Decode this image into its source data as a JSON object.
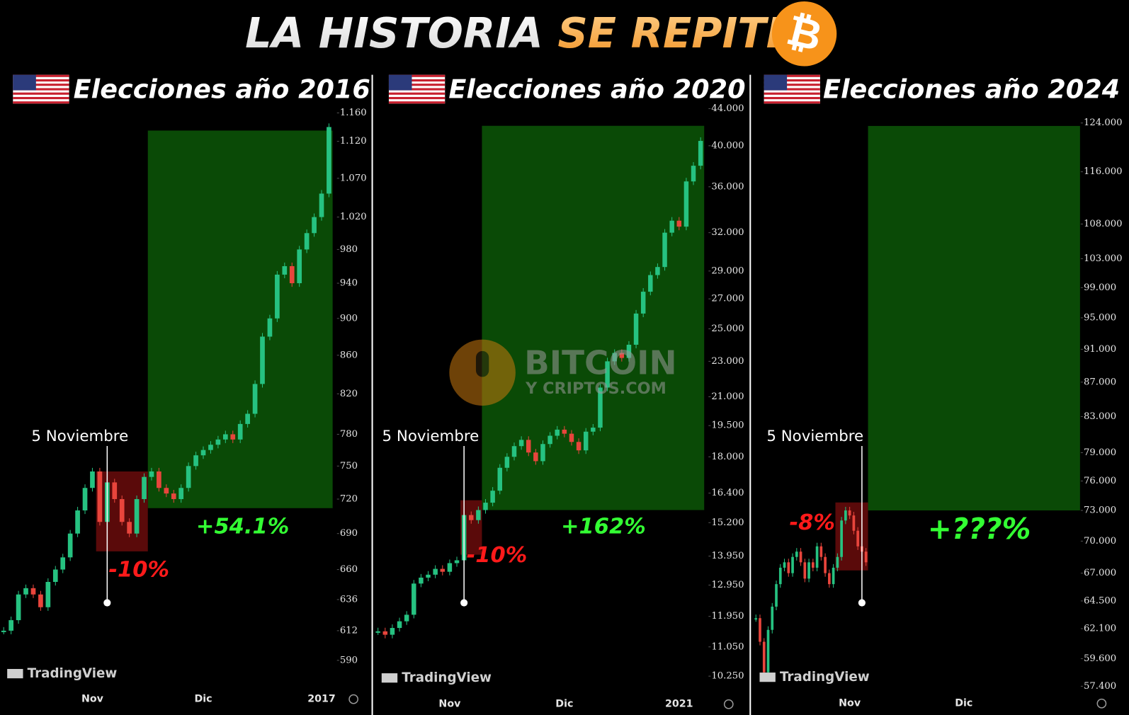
{
  "title": {
    "part1": "LA HISTORIA",
    "part2": "SE REPITE",
    "icon": "₿"
  },
  "watermark": {
    "line1": "BITCOIN",
    "line2": "Y CRIPTOS.COM"
  },
  "chart_data": [
    {
      "type": "candlestick",
      "title": "Elecciones año 2016",
      "event_label": "5 Noviembre",
      "drop_label": "-10%",
      "gain_label": "+54.1%",
      "logo": "TradingView",
      "up_color": "#26c281",
      "down_color": "#e8453c",
      "log_scale": true,
      "drop_zone": [
        675,
        745
      ],
      "gain_zone": [
        712,
        1135
      ],
      "categories": [
        null,
        null,
        null,
        null,
        null,
        null,
        null,
        null,
        null,
        null,
        null,
        null,
        "Nov",
        null,
        null,
        null,
        null,
        null,
        null,
        null,
        null,
        null,
        null,
        null,
        null,
        null,
        null,
        "Dic",
        null,
        null,
        null,
        null,
        null,
        null,
        null,
        null,
        null,
        null,
        null,
        null,
        null,
        null,
        null,
        "2017",
        null
      ],
      "values": [
        612,
        620,
        640,
        645,
        640,
        630,
        650,
        660,
        670,
        690,
        710,
        730,
        745,
        700,
        735,
        720,
        700,
        690,
        720,
        740,
        745,
        730,
        725,
        720,
        730,
        750,
        760,
        765,
        770,
        775,
        780,
        775,
        790,
        800,
        830,
        880,
        900,
        950,
        960,
        940,
        980,
        1000,
        1020,
        1050,
        1140
      ],
      "ylim": [
        590,
        1160
      ],
      "yticks": [
        590,
        612,
        636,
        660,
        690,
        720,
        750,
        780,
        820,
        860,
        900,
        940,
        980,
        {
          "value": 1020,
          "label": "1.020"
        },
        {
          "value": 1070,
          "label": "1.070"
        },
        {
          "value": 1120,
          "label": "1.120"
        },
        {
          "value": 1160,
          "label": "1.160"
        }
      ]
    },
    {
      "type": "candlestick",
      "title": "Elecciones año 2020",
      "event_label": "5 Noviembre",
      "drop_label": "-10%",
      "gain_label": "+162%",
      "logo": "TradingView",
      "up_color": "#26c281",
      "down_color": "#e8453c",
      "log_scale": true,
      "drop_zone": [
        14000,
        16100
      ],
      "gain_zone": [
        15700,
        42100
      ],
      "categories": [
        null,
        null,
        null,
        null,
        null,
        null,
        null,
        null,
        null,
        null,
        "Nov",
        null,
        null,
        null,
        null,
        null,
        null,
        null,
        null,
        null,
        null,
        null,
        null,
        null,
        null,
        null,
        "Dic",
        null,
        null,
        null,
        null,
        null,
        null,
        null,
        null,
        null,
        null,
        null,
        null,
        null,
        null,
        null,
        "2021",
        null,
        null,
        null
      ],
      "values": [
        11500,
        11400,
        11600,
        11800,
        12000,
        13000,
        13200,
        13300,
        13500,
        13400,
        13700,
        13800,
        15500,
        15300,
        15700,
        16000,
        16500,
        17500,
        18000,
        18500,
        18800,
        18200,
        17800,
        18600,
        19000,
        19300,
        19100,
        18700,
        18300,
        19200,
        19400,
        21500,
        23000,
        23500,
        23200,
        24000,
        26000,
        27500,
        28700,
        29300,
        32000,
        33000,
        32500,
        36500,
        38000,
        40500
      ],
      "ylim": [
        10250,
        44000
      ],
      "yticks": [
        {
          "value": 10250,
          "label": "10.250"
        },
        {
          "value": 11050,
          "label": "11.050"
        },
        {
          "value": 11950,
          "label": "11.950"
        },
        {
          "value": 12950,
          "label": "12.950"
        },
        {
          "value": 13950,
          "label": "13.950"
        },
        {
          "value": 15200,
          "label": "15.200"
        },
        {
          "value": 16400,
          "label": "16.400"
        },
        {
          "value": 18000,
          "label": "18.000"
        },
        {
          "value": 19500,
          "label": "19.500"
        },
        {
          "value": 21000,
          "label": "21.000"
        },
        {
          "value": 23000,
          "label": "23.000"
        },
        {
          "value": 25000,
          "label": "25.000"
        },
        {
          "value": 27000,
          "label": "27.000"
        },
        {
          "value": 29000,
          "label": "29.000"
        },
        {
          "value": 32000,
          "label": "32.000"
        },
        {
          "value": 36000,
          "label": "36.000"
        },
        {
          "value": 40000,
          "label": "40.000"
        },
        {
          "value": 44000,
          "label": "44.000"
        }
      ]
    },
    {
      "type": "candlestick",
      "title": "Elecciones año 2024",
      "event_label": "5 Noviembre",
      "drop_label": "-8%",
      "gain_label": "+???%",
      "logo": "TradingView",
      "up_color": "#26c281",
      "down_color": "#e8453c",
      "log_scale": true,
      "drop_zone": [
        67250,
        73800
      ],
      "gain_zone": [
        73000,
        123500
      ],
      "categories": [
        null,
        null,
        null,
        null,
        null,
        null,
        null,
        null,
        null,
        null,
        null,
        null,
        null,
        null,
        null,
        null,
        null,
        null,
        null,
        null,
        null,
        null,
        null,
        "Nov",
        null,
        null,
        null,
        null,
        null,
        null,
        null,
        null,
        null,
        null,
        null,
        null,
        null,
        null,
        null,
        null,
        null,
        null,
        null,
        null,
        null,
        null,
        null,
        null,
        null,
        null,
        null,
        "Dic",
        null,
        null,
        null,
        null,
        null,
        null,
        null,
        null,
        null,
        null,
        null,
        null,
        null,
        null,
        null,
        null,
        null,
        null,
        null,
        null,
        null,
        null,
        null,
        null,
        null,
        null,
        null,
        null
      ],
      "values": [
        63000,
        61000,
        58500,
        62000,
        64000,
        66000,
        67500,
        68000,
        67000,
        68500,
        69000,
        68000,
        66500,
        68000,
        67500,
        69500,
        68500,
        67000,
        66000,
        67500,
        68500,
        72000,
        73000,
        72500,
        71000,
        69500,
        69000,
        68000,
        null,
        null,
        null,
        null,
        null,
        null,
        null,
        null,
        null,
        null,
        null,
        null,
        null,
        null,
        null,
        null,
        null,
        null,
        null,
        null,
        null,
        null,
        null,
        null,
        null,
        null,
        null,
        null,
        null,
        null,
        null,
        null,
        null,
        null,
        null,
        null,
        null,
        null,
        null,
        null,
        null,
        null,
        null,
        null,
        null,
        null,
        null,
        null,
        null,
        null,
        null,
        null
      ],
      "ylim": [
        57400,
        124000
      ],
      "yticks": [
        {
          "value": 57400,
          "label": "57.400"
        },
        {
          "value": 59600,
          "label": "59.600"
        },
        {
          "value": 62100,
          "label": "62.100"
        },
        {
          "value": 64500,
          "label": "64.500"
        },
        {
          "value": 67000,
          "label": "67.000"
        },
        {
          "value": 70000,
          "label": "70.000"
        },
        {
          "value": 73000,
          "label": "73.000"
        },
        {
          "value": 76000,
          "label": "76.000"
        },
        {
          "value": 79000,
          "label": "79.000"
        },
        {
          "value": 83000,
          "label": "83.000"
        },
        {
          "value": 87000,
          "label": "87.000"
        },
        {
          "value": 91000,
          "label": "91.000"
        },
        {
          "value": 95000,
          "label": "95.000"
        },
        {
          "value": 99000,
          "label": "99.000"
        },
        {
          "value": 103000,
          "label": "103.000"
        },
        {
          "value": 108000,
          "label": "108.000"
        },
        {
          "value": 116000,
          "label": "116.000"
        },
        {
          "value": 124000,
          "label": "124.000"
        }
      ]
    }
  ]
}
